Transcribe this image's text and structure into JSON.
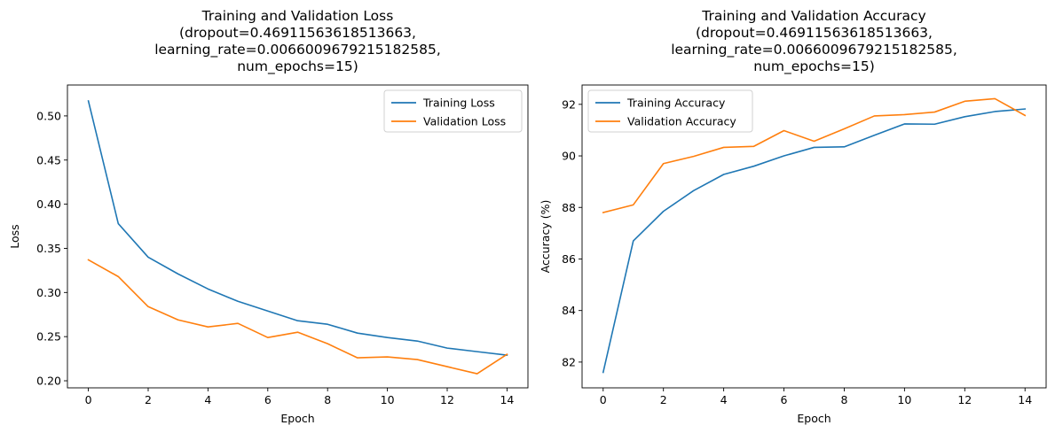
{
  "chart_data": [
    {
      "type": "line",
      "title": [
        "Training and Validation Loss",
        "(dropout=0.46911563618513663,",
        "learning_rate=0.0066009679215182585,",
        "num_epochs=15)"
      ],
      "xlabel": "Epoch",
      "ylabel": "Loss",
      "x": [
        0,
        1,
        2,
        3,
        4,
        5,
        6,
        7,
        8,
        9,
        10,
        11,
        12,
        13,
        14
      ],
      "xlim": [
        -0.7,
        14.7
      ],
      "ylim": [
        0.192,
        0.535
      ],
      "xticks": [
        0,
        2,
        4,
        6,
        8,
        10,
        12,
        14
      ],
      "yticks": [
        0.2,
        0.25,
        0.3,
        0.35,
        0.4,
        0.45,
        0.5
      ],
      "ytick_labels": [
        "0.20",
        "0.25",
        "0.30",
        "0.35",
        "0.40",
        "0.45",
        "0.50"
      ],
      "grid": false,
      "legend_position": "top-right",
      "series": [
        {
          "name": "Training Loss",
          "color": "#1f77b4",
          "values": [
            0.517,
            0.378,
            0.34,
            0.321,
            0.304,
            0.29,
            0.279,
            0.268,
            0.264,
            0.254,
            0.249,
            0.245,
            0.237,
            0.233,
            0.229
          ]
        },
        {
          "name": "Validation Loss",
          "color": "#ff7f0e",
          "values": [
            0.337,
            0.318,
            0.284,
            0.269,
            0.261,
            0.265,
            0.249,
            0.255,
            0.242,
            0.226,
            0.227,
            0.224,
            0.216,
            0.208,
            0.23
          ]
        }
      ]
    },
    {
      "type": "line",
      "title": [
        "Training and Validation Accuracy",
        "(dropout=0.46911563618513663,",
        "learning_rate=0.0066009679215182585,",
        "num_epochs=15)"
      ],
      "xlabel": "Epoch",
      "ylabel": "Accuracy (%)",
      "x": [
        0,
        1,
        2,
        3,
        4,
        5,
        6,
        7,
        8,
        9,
        10,
        11,
        12,
        13,
        14
      ],
      "xlim": [
        -0.7,
        14.7
      ],
      "ylim": [
        81.0,
        92.75
      ],
      "xticks": [
        0,
        2,
        4,
        6,
        8,
        10,
        12,
        14
      ],
      "yticks": [
        82,
        84,
        86,
        88,
        90,
        92
      ],
      "ytick_labels": [
        "82",
        "84",
        "86",
        "88",
        "90",
        "92"
      ],
      "grid": false,
      "legend_position": "top-left",
      "series": [
        {
          "name": "Training Accuracy",
          "color": "#1f77b4",
          "values": [
            81.6,
            86.7,
            87.85,
            88.65,
            89.28,
            89.6,
            90.0,
            90.33,
            90.35,
            90.8,
            91.24,
            91.23,
            91.52,
            91.72,
            91.82
          ]
        },
        {
          "name": "Validation Accuracy",
          "color": "#ff7f0e",
          "values": [
            87.8,
            88.1,
            89.7,
            89.98,
            90.33,
            90.37,
            90.98,
            90.57,
            91.05,
            91.55,
            91.6,
            91.7,
            92.12,
            92.22,
            91.57
          ]
        }
      ]
    }
  ]
}
